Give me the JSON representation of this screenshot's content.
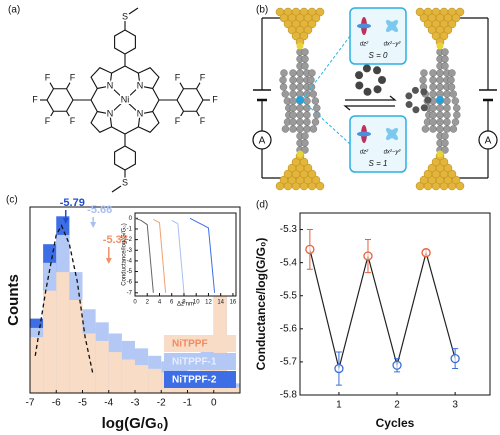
{
  "panel_labels": [
    "(a)",
    "(b)",
    "(c)",
    "(d)"
  ],
  "molecule": {
    "atoms": [
      "S",
      "N",
      "N",
      "N",
      "N",
      "Ni",
      "F",
      "F",
      "F",
      "F",
      "F",
      "F",
      "F",
      "F",
      "F",
      "F",
      "S"
    ]
  },
  "junction": {
    "top_box": {
      "orbitals": [
        "dz²",
        "dx²−y²"
      ],
      "spin": "S = 0"
    },
    "bottom_box": {
      "orbitals": [
        "dz²",
        "dx²−y²"
      ],
      "spin": "S = 1"
    },
    "meters": [
      "A",
      "A"
    ]
  },
  "chart_data": [
    {
      "type": "histogram",
      "xlabel": "log(G/G₀)",
      "ylabel": "Counts",
      "bins": [
        -7,
        -6.5,
        -6,
        -5.5,
        -5,
        -4.5,
        -4,
        -3.5,
        -3,
        -2.5,
        -2,
        -1.5,
        -1,
        -0.5,
        0,
        0.5,
        1
      ],
      "xlim": [
        -7,
        1
      ],
      "xticks": [
        -7,
        -6,
        -5,
        -4,
        -3,
        -2,
        -1,
        0
      ],
      "ylim": [
        0,
        100
      ],
      "series": [
        {
          "name": "NiTPPF",
          "color": "#f9dcc6",
          "label_color": "#f08a62",
          "values": [
            30,
            55,
            65,
            50,
            32,
            28,
            22,
            18,
            15,
            13,
            11,
            9,
            8,
            15,
            55,
            3
          ]
        },
        {
          "name": "NiTPPF-1",
          "color": "#b3c8f5",
          "label_color": "#e8eeff",
          "values": [
            35,
            70,
            85,
            65,
            45,
            38,
            32,
            28,
            24,
            20,
            17,
            14,
            12,
            25,
            70,
            5
          ]
        },
        {
          "name": "NiTPPF-2",
          "color": "#3d6ee6",
          "label_color": "#ffffff",
          "values": [
            40,
            80,
            95,
            60,
            35,
            28,
            22,
            18,
            14,
            12,
            10,
            8,
            7,
            20,
            90,
            5
          ]
        }
      ],
      "fit": {
        "x": [
          -6.8,
          -6.4,
          -6,
          -5.8,
          -5.5,
          -5.2,
          -4.9,
          -4.6
        ],
        "values": [
          20,
          55,
          85,
          90,
          80,
          60,
          30,
          10
        ]
      },
      "peaks": [
        {
          "value": -5.79,
          "color": "#1f4fd0"
        },
        {
          "value": -5.66,
          "color": "#a9bff2"
        },
        {
          "value": -5.37,
          "color": "#f0906a"
        }
      ],
      "legend": "lower right"
    },
    {
      "type": "line",
      "xlabel": "Δz nm",
      "ylabel": "Conductance/log(G/G₀)",
      "x": [
        0,
        1,
        2,
        3,
        4,
        5,
        6,
        7,
        8,
        9,
        10,
        11,
        12,
        13,
        14,
        15,
        16
      ],
      "xlim": [
        0,
        16.5
      ],
      "xticks": [
        0,
        2,
        4,
        6,
        8,
        10,
        12,
        14,
        16
      ],
      "ylim": [
        -7.3,
        0.5
      ],
      "yticks": [
        0,
        -1,
        -2,
        -3,
        -4,
        -5,
        -6,
        -7
      ],
      "series": [
        {
          "color": "#666666",
          "values": [
            0,
            -0.2,
            -0.6,
            -7,
            null,
            null,
            null,
            null,
            null,
            null,
            null,
            null,
            null,
            null,
            null,
            null,
            null
          ]
        },
        {
          "color": "#f0a070",
          "values": [
            null,
            null,
            null,
            -0.1,
            -0.4,
            -7,
            null,
            null,
            null,
            null,
            null,
            null,
            null,
            null,
            null,
            null,
            null
          ]
        },
        {
          "color": "#a9bff2",
          "values": [
            null,
            null,
            null,
            null,
            null,
            null,
            -0.2,
            -0.5,
            -7,
            null,
            null,
            null,
            null,
            null,
            null,
            null,
            null
          ]
        },
        {
          "color": "#3d6ee6",
          "values": [
            null,
            null,
            null,
            null,
            null,
            null,
            null,
            null,
            null,
            0,
            -0.3,
            -0.6,
            -0.9,
            -7,
            null,
            null,
            null
          ]
        }
      ]
    },
    {
      "type": "errorline",
      "xlabel": "Cycles",
      "ylabel": "Conductance/log(G/G₀)",
      "x": [
        0.5,
        1,
        1.5,
        2,
        2.5,
        3
      ],
      "values": [
        -5.36,
        -5.72,
        -5.38,
        -5.71,
        -5.37,
        -5.69
      ],
      "errors": [
        0.06,
        0.05,
        0.05,
        0.02,
        0.01,
        0.03
      ],
      "point_colors": [
        "#e8603c",
        "#3b6fd8",
        "#e8603c",
        "#3b6fd8",
        "#e8603c",
        "#3b6fd8"
      ],
      "color": "#222222",
      "xlim": [
        0.33,
        3.6
      ],
      "xticks": [
        1,
        2,
        3
      ],
      "ylim": [
        -5.8,
        -5.25
      ],
      "yticks": [
        -5.3,
        -5.4,
        -5.5,
        -5.6,
        -5.7,
        -5.8
      ]
    }
  ]
}
